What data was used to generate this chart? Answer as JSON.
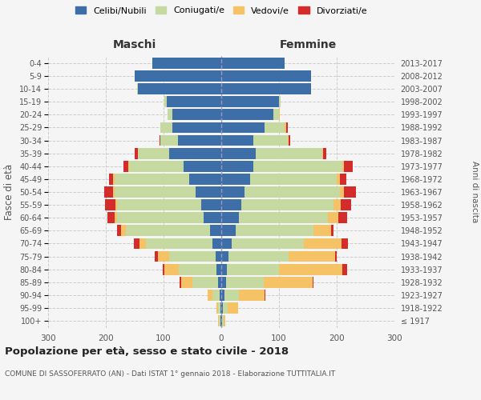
{
  "age_groups": [
    "100+",
    "95-99",
    "90-94",
    "85-89",
    "80-84",
    "75-79",
    "70-74",
    "65-69",
    "60-64",
    "55-59",
    "50-54",
    "45-49",
    "40-44",
    "35-39",
    "30-34",
    "25-29",
    "20-24",
    "15-19",
    "10-14",
    "5-9",
    "0-4"
  ],
  "birth_years": [
    "≤ 1917",
    "1918-1922",
    "1923-1927",
    "1928-1932",
    "1933-1937",
    "1938-1942",
    "1943-1947",
    "1948-1952",
    "1953-1957",
    "1958-1962",
    "1963-1967",
    "1968-1972",
    "1973-1977",
    "1978-1982",
    "1983-1987",
    "1988-1992",
    "1993-1997",
    "1998-2002",
    "2003-2007",
    "2008-2012",
    "2013-2017"
  ],
  "males": {
    "celibe": [
      2,
      2,
      3,
      5,
      8,
      10,
      15,
      20,
      30,
      35,
      45,
      55,
      65,
      90,
      75,
      85,
      85,
      95,
      145,
      150,
      120
    ],
    "coniugato": [
      2,
      4,
      12,
      45,
      65,
      80,
      115,
      145,
      150,
      145,
      140,
      130,
      95,
      55,
      30,
      20,
      8,
      3,
      1,
      0,
      0
    ],
    "vedovo": [
      1,
      3,
      8,
      20,
      25,
      20,
      12,
      8,
      5,
      4,
      3,
      2,
      1,
      0,
      0,
      0,
      0,
      0,
      0,
      0,
      0
    ],
    "divorziato": [
      0,
      0,
      0,
      2,
      3,
      5,
      10,
      8,
      12,
      18,
      15,
      8,
      8,
      5,
      2,
      1,
      0,
      0,
      0,
      0,
      0
    ]
  },
  "females": {
    "nubile": [
      2,
      3,
      5,
      8,
      10,
      12,
      18,
      25,
      30,
      35,
      40,
      50,
      55,
      60,
      55,
      75,
      90,
      100,
      155,
      155,
      110
    ],
    "coniugata": [
      2,
      8,
      25,
      65,
      90,
      105,
      125,
      135,
      155,
      160,
      165,
      150,
      155,
      115,
      60,
      35,
      10,
      3,
      0,
      0,
      0
    ],
    "vedova": [
      3,
      18,
      45,
      85,
      110,
      80,
      65,
      30,
      18,
      12,
      8,
      5,
      3,
      2,
      1,
      2,
      1,
      0,
      0,
      0,
      0
    ],
    "divorziata": [
      0,
      0,
      1,
      2,
      8,
      3,
      12,
      5,
      15,
      18,
      20,
      12,
      15,
      5,
      3,
      3,
      0,
      0,
      0,
      0,
      0
    ]
  },
  "color_celibe": "#3d6ea8",
  "color_coniugato": "#c5d9a0",
  "color_vedovo": "#f5c265",
  "color_divorziato": "#d42b2b",
  "color_background": "#f5f5f5",
  "title": "Popolazione per età, sesso e stato civile - 2018",
  "subtitle": "COMUNE DI SASSOFERRATO (AN) - Dati ISTAT 1° gennaio 2018 - Elaborazione TUTTITALIA.IT",
  "ylabel_left": "Fasce di età",
  "ylabel_right": "Anni di nascita",
  "xlabel_maschi": "Maschi",
  "xlabel_femmine": "Femmine",
  "xlim": 300,
  "legend_labels": [
    "Celibi/Nubili",
    "Coniugati/e",
    "Vedovi/e",
    "Divorziati/e"
  ]
}
